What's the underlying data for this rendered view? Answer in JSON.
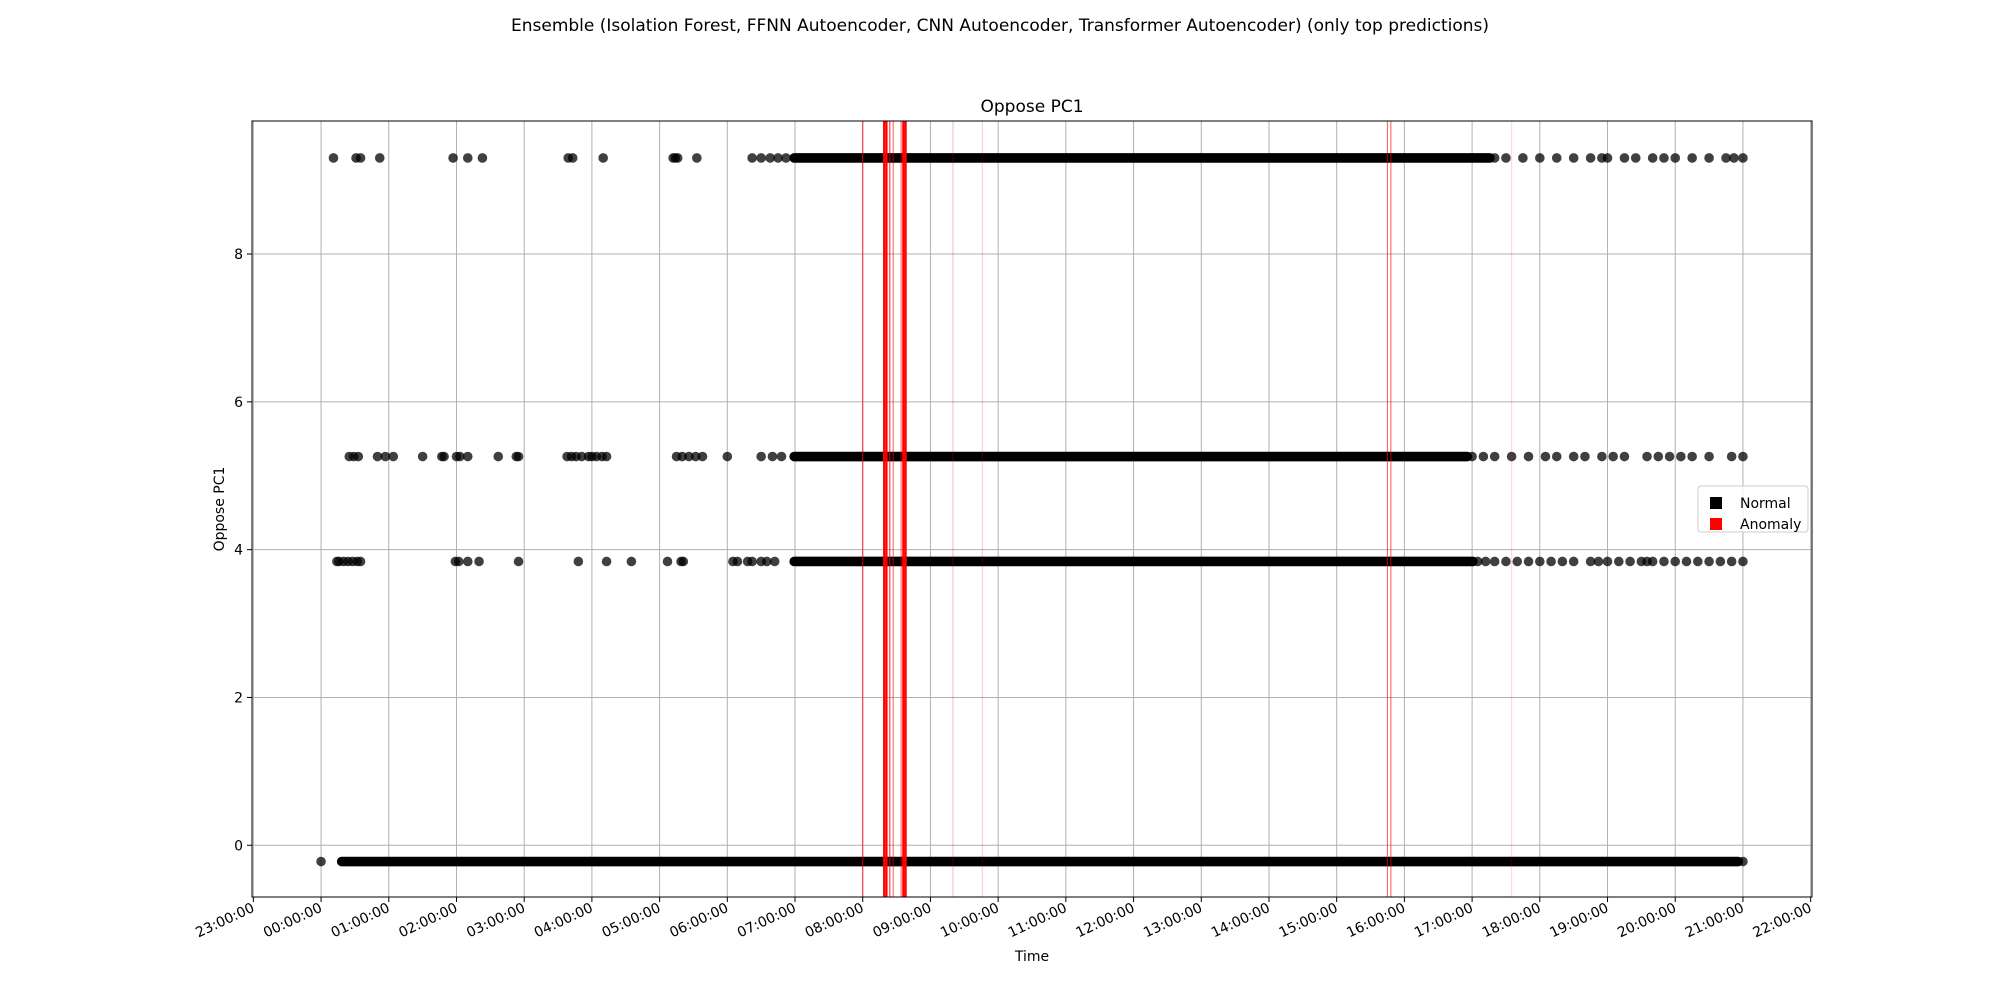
{
  "figure_title": "Ensemble (Isolation Forest, FFNN Autoencoder, CNN Autoencoder, Transformer Autoencoder) (only top predictions)",
  "chart_data": {
    "type": "scatter",
    "title": "Oppose PC1",
    "xlabel": "Time",
    "ylabel": "Oppose PC1",
    "x_range": [
      "23:00:00",
      "22:00:00"
    ],
    "xlim_hours": [
      -1.02,
      22.02
    ],
    "ylim": [
      -0.7,
      9.8
    ],
    "x_ticks": [
      "23:00:00",
      "00:00:00",
      "01:00:00",
      "02:00:00",
      "03:00:00",
      "04:00:00",
      "05:00:00",
      "06:00:00",
      "07:00:00",
      "08:00:00",
      "09:00:00",
      "10:00:00",
      "11:00:00",
      "12:00:00",
      "13:00:00",
      "14:00:00",
      "15:00:00",
      "16:00:00",
      "17:00:00",
      "18:00:00",
      "19:00:00",
      "20:00:00",
      "21:00:00",
      "22:00:00"
    ],
    "y_ticks": [
      0,
      2,
      4,
      6,
      8
    ],
    "grid": true,
    "legend_position": "center-right",
    "legend": [
      {
        "label": "Normal",
        "color": "#000000"
      },
      {
        "label": "Anomaly",
        "color": "#ff0000"
      }
    ],
    "series": [
      {
        "name": "Normal",
        "color": "#000000",
        "levels": [
          {
            "y": -0.22,
            "sparse_times": [
              "00:00:00"
            ],
            "dense_from": "00:14:00",
            "dense_to": "21:00:00"
          },
          {
            "y": 3.84,
            "sparse_times": [
              "00:14:00",
              "00:16:00",
              "00:20:00",
              "00:24:00",
              "00:28:00",
              "00:32:00",
              "00:35:00",
              "01:59:00",
              "02:02:00",
              "02:10:00",
              "02:20:00",
              "02:55:00",
              "03:48:00",
              "04:13:00",
              "04:35:00",
              "05:07:00",
              "05:19:00",
              "05:21:00",
              "06:05:00",
              "06:09:00",
              "06:18:00",
              "06:22:00",
              "06:30:00",
              "06:35:00",
              "06:42:00"
            ],
            "dense_from": "06:55:00",
            "dense_to": "17:05:00",
            "sparse_tail": [
              "17:12:00",
              "17:20:00",
              "17:30:00",
              "17:40:00",
              "17:50:00",
              "18:00:00",
              "18:10:00",
              "18:20:00",
              "18:30:00",
              "18:45:00",
              "18:52:00",
              "19:00:00",
              "19:10:00",
              "19:20:00",
              "19:30:00",
              "19:35:00",
              "19:40:00",
              "19:50:00",
              "20:00:00",
              "20:10:00",
              "20:20:00",
              "20:30:00",
              "20:40:00",
              "20:50:00",
              "21:00:00"
            ]
          },
          {
            "y": 5.26,
            "sparse_times": [
              "00:25:00",
              "00:29:00",
              "00:33:00",
              "00:50:00",
              "00:57:00",
              "01:04:00",
              "01:30:00",
              "01:47:00",
              "01:49:00",
              "02:00:00",
              "02:03:00",
              "02:10:00",
              "02:37:00",
              "02:53:00",
              "02:55:00",
              "03:38:00",
              "03:42:00",
              "03:46:00",
              "03:51:00",
              "03:57:00",
              "04:00:00",
              "04:04:00",
              "04:09:00",
              "04:13:00",
              "05:15:00",
              "05:20:00",
              "05:26:00",
              "05:32:00",
              "05:38:00",
              "06:00:00",
              "06:30:00",
              "06:40:00",
              "06:48:00"
            ],
            "dense_from": "06:55:00",
            "dense_to": "17:00:00",
            "sparse_tail": [
              "17:10:00",
              "17:20:00",
              "17:35:00",
              "17:50:00",
              "18:05:00",
              "18:15:00",
              "18:30:00",
              "18:40:00",
              "18:55:00",
              "19:05:00",
              "19:15:00",
              "19:35:00",
              "19:45:00",
              "19:55:00",
              "20:05:00",
              "20:15:00",
              "20:30:00",
              "20:50:00",
              "21:00:00"
            ]
          },
          {
            "y": 9.3,
            "sparse_times": [
              "00:11:00",
              "00:31:00",
              "00:35:00",
              "00:52:00",
              "01:57:00",
              "02:10:00",
              "02:23:00",
              "03:39:00",
              "03:43:00",
              "04:10:00",
              "05:12:00",
              "05:14:00",
              "05:16:00",
              "05:33:00",
              "06:22:00",
              "06:30:00",
              "06:38:00",
              "06:45:00",
              "06:52:00"
            ],
            "dense_from": "06:55:00",
            "dense_to": "17:20:00",
            "sparse_tail": [
              "17:30:00",
              "17:45:00",
              "18:00:00",
              "18:15:00",
              "18:30:00",
              "18:45:00",
              "18:55:00",
              "19:00:00",
              "19:15:00",
              "19:25:00",
              "19:40:00",
              "19:50:00",
              "20:00:00",
              "20:15:00",
              "20:30:00",
              "20:45:00",
              "20:52:00",
              "21:00:00"
            ]
          }
        ]
      },
      {
        "name": "Anomaly",
        "color": "#ff0000",
        "vertical_lines": [
          {
            "time": "08:00:00",
            "strength": 0.7
          },
          {
            "time": "08:19:00",
            "strength": 1.0
          },
          {
            "time": "08:21:00",
            "strength": 1.0
          },
          {
            "time": "08:24:00",
            "strength": 0.8
          },
          {
            "time": "08:27:00",
            "strength": 0.6
          },
          {
            "time": "08:34:00",
            "strength": 0.6
          },
          {
            "time": "08:36:00",
            "strength": 1.0
          },
          {
            "time": "08:38:00",
            "strength": 1.0
          },
          {
            "time": "09:20:00",
            "strength": 0.25
          },
          {
            "time": "09:46:00",
            "strength": 0.2
          },
          {
            "time": "15:45:00",
            "strength": 0.6
          },
          {
            "time": "15:48:00",
            "strength": 0.6
          },
          {
            "time": "17:35:00",
            "strength": 0.15
          }
        ]
      }
    ]
  }
}
